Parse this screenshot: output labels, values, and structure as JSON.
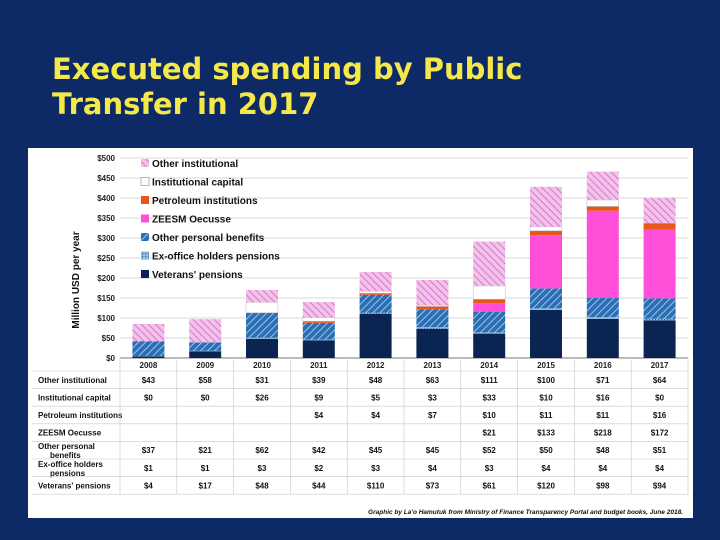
{
  "slide": {
    "title_line1": "Executed spending by Public",
    "title_line2": "Transfer in 2017"
  },
  "chart_data": {
    "type": "bar",
    "stacked": true,
    "ylabel": "Million USD per year",
    "ylim": [
      0,
      500
    ],
    "yticks": [
      "$0",
      "$50",
      "$100",
      "$150",
      "$200",
      "$250",
      "$300",
      "$350",
      "$400",
      "$450",
      "$500"
    ],
    "categories": [
      "2008",
      "2009",
      "2010",
      "2011",
      "2012",
      "2013",
      "2014",
      "2015",
      "2016",
      "2017"
    ],
    "legend_position": "top-left",
    "series": [
      {
        "name": "Veterans' pensions",
        "table_label": "Veterans' pensions",
        "color": "#0a2552",
        "pattern": "solid",
        "values": [
          4,
          17,
          48,
          44,
          110,
          73,
          61,
          120,
          98,
          94
        ],
        "display": [
          "$4",
          "$17",
          "$48",
          "$44",
          "$110",
          "$73",
          "$61",
          "$120",
          "$98",
          "$94"
        ]
      },
      {
        "name": "Ex-office holders pensions",
        "table_label": "Ex-office holders pensions",
        "color": "#4a8fc0",
        "pattern": "grid",
        "values": [
          1,
          1,
          3,
          2,
          3,
          4,
          3,
          4,
          4,
          4
        ],
        "display": [
          "$1",
          "$1",
          "$3",
          "$2",
          "$3",
          "$4",
          "$3",
          "$4",
          "$4",
          "$4"
        ]
      },
      {
        "name": "Other personal benefits",
        "table_label": "Other personal benefits",
        "color": "#2a6fb5",
        "pattern": "hatch",
        "values": [
          37,
          21,
          62,
          42,
          45,
          45,
          52,
          50,
          48,
          51
        ],
        "display": [
          "$37",
          "$21",
          "$62",
          "$42",
          "$45",
          "$45",
          "$52",
          "$50",
          "$48",
          "$51"
        ]
      },
      {
        "name": "ZEESM Oecusse",
        "table_label": "ZEESM Oecusse",
        "color": "#ff4fd8",
        "pattern": "solid",
        "values": [
          0,
          0,
          0,
          0,
          0,
          0,
          21,
          133,
          218,
          172
        ],
        "display": [
          "",
          "",
          "",
          "",
          "",
          "",
          "$21",
          "$133",
          "$218",
          "$172"
        ]
      },
      {
        "name": "Petroleum institutions",
        "table_label": "Petroleum institutions",
        "color": "#e8561c",
        "pattern": "solid",
        "values": [
          0,
          0,
          0,
          4,
          4,
          7,
          10,
          11,
          11,
          16
        ],
        "display": [
          "",
          "",
          "",
          "$4",
          "$4",
          "$7",
          "$10",
          "$11",
          "$11",
          "$16"
        ]
      },
      {
        "name": "Institutional capital",
        "table_label": "Institutional capital",
        "color": "#ffffff",
        "pattern": "solid",
        "values": [
          0,
          0,
          26,
          9,
          5,
          3,
          33,
          10,
          16,
          0
        ],
        "display": [
          "$0",
          "$0",
          "$26",
          "$9",
          "$5",
          "$3",
          "$33",
          "$10",
          "$16",
          "$0"
        ]
      },
      {
        "name": "Other institutional",
        "table_label": "Other institutional",
        "color": "#e58ad6",
        "pattern": "hatch",
        "values": [
          43,
          58,
          31,
          39,
          48,
          63,
          111,
          100,
          71,
          64
        ],
        "display": [
          "$43",
          "$58",
          "$31",
          "$39",
          "$48",
          "$63",
          "$111",
          "$100",
          "$71",
          "$64"
        ]
      }
    ]
  },
  "credit": "Graphic by La'o Hamutuk from Ministry of Finance Transparency Portal and budget books, June 2018."
}
